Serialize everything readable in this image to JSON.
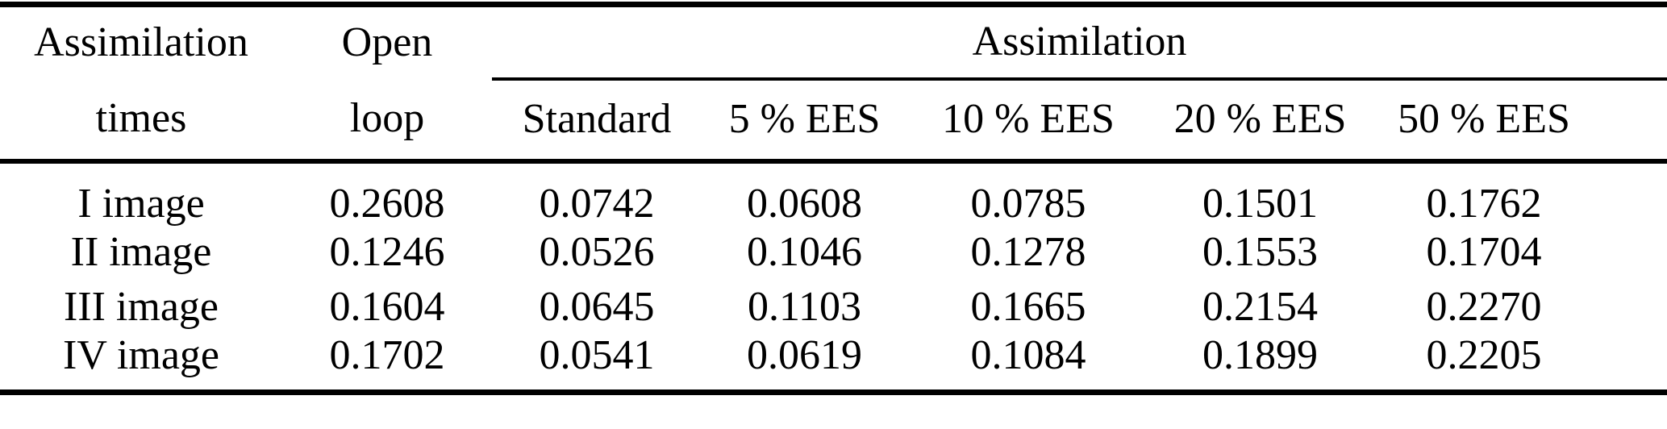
{
  "table": {
    "stub_header_line1": "Assimilation",
    "stub_header_line2": "times",
    "open_loop_line1": "Open",
    "open_loop_line2": "loop",
    "span_header": "Assimilation",
    "sub_headers": [
      "Standard",
      "5 % EES",
      "10 % EES",
      "20 % EES",
      "50 % EES"
    ],
    "rows": [
      {
        "label": "I image",
        "open_loop": "0.2608",
        "values": [
          "0.0742",
          "0.0608",
          "0.0785",
          "0.1501",
          "0.1762"
        ]
      },
      {
        "label": "II image",
        "open_loop": "0.1246",
        "values": [
          "0.0526",
          "0.1046",
          "0.1278",
          "0.1553",
          "0.1704"
        ]
      },
      {
        "label": "III image",
        "open_loop": "0.1604",
        "values": [
          "0.0645",
          "0.1103",
          "0.1665",
          "0.2154",
          "0.2270"
        ]
      },
      {
        "label": "IV image",
        "open_loop": "0.1702",
        "values": [
          "0.0541",
          "0.0619",
          "0.1084",
          "0.1899",
          "0.2205"
        ]
      }
    ],
    "text_color": "#000000",
    "background_color": "#ffffff"
  },
  "chart_data": {
    "type": "table",
    "title": "",
    "column_headers": [
      "Assimilation times",
      "Open loop",
      "Standard",
      "5 % EES",
      "10 % EES",
      "20 % EES",
      "50 % EES"
    ],
    "spanning_header": {
      "label": "Assimilation",
      "spans": [
        "Standard",
        "5 % EES",
        "10 % EES",
        "20 % EES",
        "50 % EES"
      ]
    },
    "rows": [
      [
        "I image",
        "0.2608",
        "0.0742",
        "0.0608",
        "0.0785",
        "0.1501",
        "0.1762"
      ],
      [
        "II image",
        "0.1246",
        "0.0526",
        "0.1046",
        "0.1278",
        "0.1553",
        "0.1704"
      ],
      [
        "III image",
        "0.1604",
        "0.0645",
        "0.1103",
        "0.1665",
        "0.2154",
        "0.2270"
      ],
      [
        "IV image",
        "0.1702",
        "0.0541",
        "0.0619",
        "0.1084",
        "0.1899",
        "0.2205"
      ]
    ]
  }
}
